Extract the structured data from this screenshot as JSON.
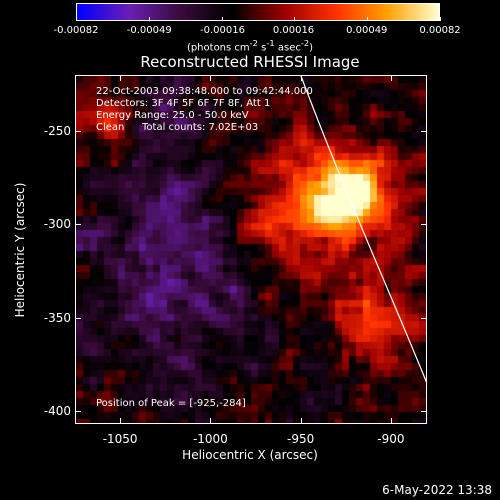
{
  "colorbar": {
    "tick_labels": [
      "-0.00082",
      "-0.00049",
      "-0.00016",
      "0.00016",
      "0.00049",
      "0.00082"
    ],
    "tick_values": [
      -0.00082,
      -0.00049,
      -0.00016,
      0.00016,
      0.00049,
      0.00082
    ],
    "range": [
      -0.00082,
      0.00082
    ],
    "units_prefix": "(photons cm",
    "units_exp1": "-2",
    "units_mid": " s",
    "units_exp2": "-1",
    "units_mid2": " asec",
    "units_exp3": "-2",
    "units_suffix": ")",
    "colors": [
      "#0000ff",
      "#6a1fb5",
      "#3a0a3a",
      "#000000",
      "#9b0000",
      "#ff3000",
      "#ffa000",
      "#ffffd0"
    ]
  },
  "title": "Reconstructed RHESSI Image",
  "annotations": {
    "time_range": "22-Oct-2003 09:38:48.000 to 09:42:44.000",
    "detectors": "Detectors: 3F 4F 5F 6F 7F 8F, Att 1",
    "energy": "Energy Range: 25.0 - 50.0 keV",
    "method": "Clean",
    "total_counts": "Total counts: 7.02E+03",
    "peak": "Position of Peak = [-925,-284]"
  },
  "axes": {
    "xlabel": "Heliocentric X (arcsec)",
    "ylabel": "Heliocentric Y (arcsec)",
    "xticks": [
      "-1050",
      "-1000",
      "-950",
      "-900"
    ],
    "xtick_values": [
      -1050,
      -1000,
      -950,
      -900
    ],
    "yticks": [
      "-250",
      "-300",
      "-350",
      "-400"
    ],
    "ytick_values": [
      -250,
      -300,
      -350,
      -400
    ],
    "xlim": [
      -1075,
      -880
    ],
    "ylim": [
      -407,
      -220
    ]
  },
  "peak_position": [
    -925,
    -284
  ],
  "timestamp": "6-May-2022 13:38"
}
